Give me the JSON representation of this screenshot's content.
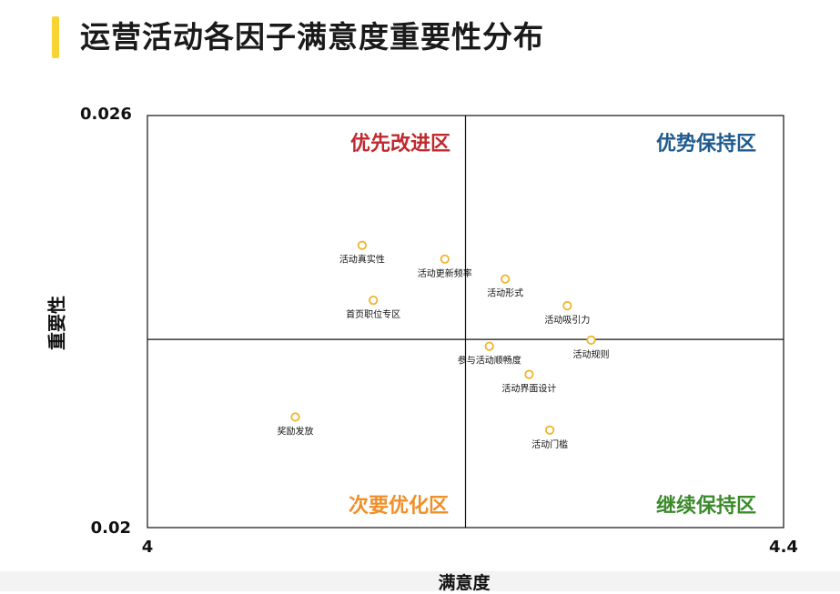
{
  "page": {
    "title": "运营活动各因子满意度重要性分布",
    "accent_color": "#f7d434"
  },
  "chart_data": {
    "type": "scatter",
    "title": "运营活动各因子满意度重要性分布",
    "xlabel": "满意度",
    "ylabel": "重要性",
    "xlim": [
      4,
      4.4
    ],
    "ylim": [
      0.02,
      0.026
    ],
    "x_tick_labels": [
      "4",
      "4.4"
    ],
    "y_tick_labels": [
      "0.02",
      "0.026"
    ],
    "divider": {
      "x": 4.2,
      "y": 0.02274
    },
    "grid": false,
    "marker": {
      "shape": "hollow-circle",
      "color": "#f0b429"
    },
    "quadrants": [
      {
        "key": "top_left",
        "label": "优先改进区",
        "color": "#c0282d"
      },
      {
        "key": "top_right",
        "label": "优势保持区",
        "color": "#1e5a8e"
      },
      {
        "key": "bottom_left",
        "label": "次要优化区",
        "color": "#ef8f2a"
      },
      {
        "key": "bottom_right",
        "label": "继续保持区",
        "color": "#3b8a2b"
      }
    ],
    "points": [
      {
        "label": "活动真实性",
        "x": 4.135,
        "y": 0.02411
      },
      {
        "label": "活动更新频率",
        "x": 4.187,
        "y": 0.02391
      },
      {
        "label": "活动形式",
        "x": 4.225,
        "y": 0.02362
      },
      {
        "label": "首页职位专区",
        "x": 4.142,
        "y": 0.02331
      },
      {
        "label": "活动吸引力",
        "x": 4.264,
        "y": 0.02323
      },
      {
        "label": "活动规则",
        "x": 4.279,
        "y": 0.02273
      },
      {
        "label": "参与活动顺畅度",
        "x": 4.215,
        "y": 0.02264
      },
      {
        "label": "活动界面设计",
        "x": 4.24,
        "y": 0.02223
      },
      {
        "label": "奖励发放",
        "x": 4.093,
        "y": 0.02161
      },
      {
        "label": "活动门槛",
        "x": 4.253,
        "y": 0.02142
      }
    ]
  }
}
